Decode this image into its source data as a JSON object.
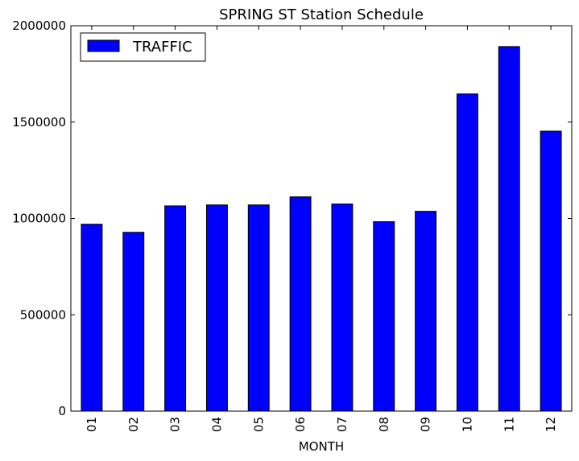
{
  "chart_data": {
    "type": "bar",
    "title": "SPRING ST Station Schedule",
    "xlabel": "MONTH",
    "ylabel": "",
    "categories": [
      "01",
      "02",
      "03",
      "04",
      "05",
      "06",
      "07",
      "08",
      "09",
      "10",
      "11",
      "12"
    ],
    "series": [
      {
        "name": "TRAFFIC",
        "color": "#0000ff",
        "values": [
          970000,
          928000,
          1065000,
          1070000,
          1070000,
          1112000,
          1075000,
          983000,
          1037000,
          1646000,
          1892000,
          1453000
        ]
      }
    ],
    "ylim": [
      0,
      2000000
    ],
    "yticks": [
      "0",
      "500000",
      "1000000",
      "1500000",
      "2000000"
    ],
    "legend_position": "top-left",
    "grid": false
  }
}
